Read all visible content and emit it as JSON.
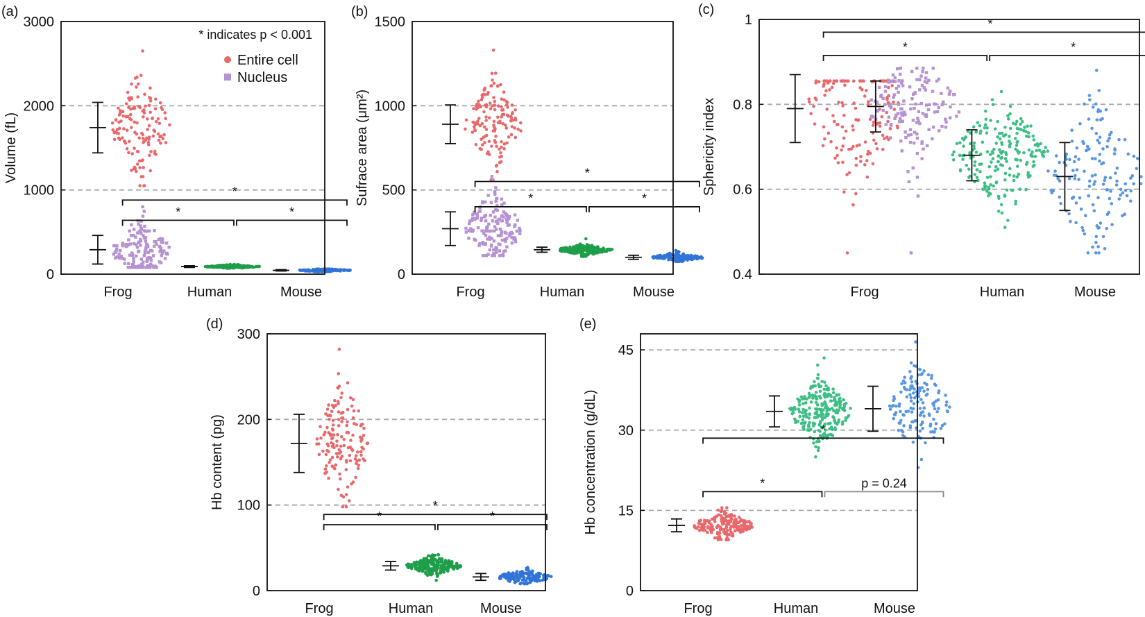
{
  "chart_data": [
    {
      "id": "a",
      "panel_label": "(a)",
      "type": "scatter",
      "ylabel": "Volume (fL)",
      "ylim": [
        0,
        3000
      ],
      "yticks": [
        0,
        1000,
        2000,
        3000
      ],
      "gridlines": [
        1000,
        2000
      ],
      "categories": [
        "Frog",
        "Human",
        "Mouse"
      ],
      "annotation": "* indicates p < 0.001",
      "legend": {
        "position": "top-right",
        "entries": [
          {
            "label": "Entire cell",
            "marker": "circle",
            "color": "#e8686b"
          },
          {
            "label": "Nucleus",
            "marker": "square",
            "color": "#b592d1"
          }
        ]
      },
      "series": [
        {
          "name": "Frog entire cell",
          "category": "Frog",
          "offset": 0.25,
          "mean": 1740,
          "sd": 300,
          "n": 140,
          "min": 1050,
          "max": 2650,
          "shape": "circle",
          "color": "#e8686b",
          "spread": 0.32
        },
        {
          "name": "Frog nucleus",
          "category": "Frog",
          "offset": 0.25,
          "mean": 290,
          "sd": 170,
          "n": 160,
          "min": 80,
          "max": 800,
          "shape": "square",
          "color": "#b592d1",
          "spread": 0.32
        },
        {
          "name": "Human",
          "category": "Human",
          "offset": 0.25,
          "mean": 90,
          "sd": 10,
          "n": 200,
          "min": 70,
          "max": 115,
          "shape": "circle",
          "color": "#1f9e4a",
          "spread": 0.3
        },
        {
          "name": "Mouse",
          "category": "Mouse",
          "offset": 0.25,
          "mean": 45,
          "sd": 8,
          "n": 140,
          "min": 30,
          "max": 60,
          "shape": "circle",
          "color": "#2f74d6",
          "spread": 0.3
        }
      ],
      "brackets": [
        {
          "from": 0,
          "to": 2,
          "y": 880,
          "label": "*"
        },
        {
          "from": 0,
          "to": 1,
          "y": 640,
          "label": "*"
        },
        {
          "from": 1,
          "to": 2,
          "y": 640,
          "label": "*"
        }
      ]
    },
    {
      "id": "b",
      "panel_label": "(b)",
      "type": "scatter",
      "ylabel": "Sufrace area (μm²)",
      "ylim": [
        0,
        1500
      ],
      "yticks": [
        0,
        500,
        1000,
        1500
      ],
      "gridlines": [
        500,
        1000
      ],
      "categories": [
        "Frog",
        "Human",
        "Mouse"
      ],
      "series": [
        {
          "name": "Frog entire cell",
          "category": "Frog",
          "offset": 0.25,
          "mean": 890,
          "sd": 115,
          "n": 140,
          "min": 560,
          "max": 1330,
          "shape": "circle",
          "color": "#e8686b",
          "spread": 0.32
        },
        {
          "name": "Frog nucleus",
          "category": "Frog",
          "offset": 0.25,
          "mean": 270,
          "sd": 100,
          "n": 160,
          "min": 110,
          "max": 580,
          "shape": "square",
          "color": "#b592d1",
          "spread": 0.32
        },
        {
          "name": "Human",
          "category": "Human",
          "offset": 0.25,
          "mean": 145,
          "sd": 15,
          "n": 200,
          "min": 105,
          "max": 210,
          "shape": "circle",
          "color": "#1f9e4a",
          "spread": 0.3
        },
        {
          "name": "Mouse",
          "category": "Mouse",
          "offset": 0.25,
          "mean": 100,
          "sd": 12,
          "n": 140,
          "min": 75,
          "max": 140,
          "shape": "circle",
          "color": "#2f74d6",
          "spread": 0.3
        }
      ],
      "brackets": [
        {
          "from": 0,
          "to": 2,
          "y": 550,
          "label": "*"
        },
        {
          "from": 0,
          "to": 1,
          "y": 400,
          "label": "*"
        },
        {
          "from": 1,
          "to": 2,
          "y": 400,
          "label": "*"
        }
      ]
    },
    {
      "id": "c",
      "panel_label": "(c)",
      "type": "scatter",
      "ylabel": "Sphericity index",
      "ylim": [
        0.4,
        1.0
      ],
      "yticks": [
        0.4,
        0.6,
        0.8,
        1.0
      ],
      "yticklabels": [
        "0.4",
        "0.6",
        "0.8",
        "1"
      ],
      "gridlines": [
        0.6,
        0.8
      ],
      "categories": [
        "Frog",
        "Human",
        "Mouse"
      ],
      "series": [
        {
          "name": "Frog entire cell",
          "category": "Frog",
          "offset": -0.08,
          "mean": 0.79,
          "sd": 0.08,
          "n": 150,
          "min": 0.45,
          "max": 0.855,
          "shape": "circle",
          "color": "#e8686b",
          "spread": 0.38
        },
        {
          "name": "Frog nucleus",
          "category": "Frog",
          "offset": 0.36,
          "mean": 0.795,
          "sd": 0.06,
          "n": 150,
          "min": 0.45,
          "max": 0.885,
          "shape": "square",
          "color": "#b592d1",
          "spread": 0.34
        },
        {
          "name": "Human",
          "category": "Human",
          "offset": 0.0,
          "mean": 0.68,
          "sd": 0.06,
          "n": 220,
          "min": 0.51,
          "max": 0.83,
          "shape": "circle",
          "color": "#3dbf84",
          "spread": 0.36
        },
        {
          "name": "Mouse",
          "category": "Mouse",
          "offset": 0.0,
          "mean": 0.63,
          "sd": 0.08,
          "n": 150,
          "min": 0.45,
          "max": 0.88,
          "shape": "circle",
          "color": "#5b96e0",
          "spread": 0.36
        }
      ],
      "brackets": [
        {
          "from": 0,
          "to": 2,
          "y": 0.97,
          "label": "*"
        },
        {
          "from": 0,
          "to": 1,
          "y": 0.915,
          "label": "*"
        },
        {
          "from": 1,
          "to": 2,
          "y": 0.915,
          "label": "*"
        }
      ]
    },
    {
      "id": "d",
      "panel_label": "(d)",
      "type": "scatter",
      "ylabel": "Hb content (pg)",
      "ylim": [
        0,
        300
      ],
      "yticks": [
        0,
        100,
        200,
        300
      ],
      "gridlines": [
        100,
        200
      ],
      "categories": [
        "Frog",
        "Human",
        "Mouse"
      ],
      "series": [
        {
          "name": "Frog",
          "category": "Frog",
          "offset": 0.25,
          "mean": 172,
          "sd": 34,
          "n": 150,
          "min": 98,
          "max": 282,
          "shape": "circle",
          "color": "#e8686b",
          "spread": 0.3
        },
        {
          "name": "Human",
          "category": "Human",
          "offset": 0.25,
          "mean": 29,
          "sd": 5,
          "n": 220,
          "min": 12,
          "max": 42,
          "shape": "circle",
          "color": "#1f9e4a",
          "spread": 0.3
        },
        {
          "name": "Mouse",
          "category": "Mouse",
          "offset": 0.25,
          "mean": 16,
          "sd": 4,
          "n": 140,
          "min": 8,
          "max": 27,
          "shape": "circle",
          "color": "#2f74d6",
          "spread": 0.3
        }
      ],
      "brackets": [
        {
          "from": 0,
          "to": 2,
          "y": 89,
          "label": "*"
        },
        {
          "from": 0,
          "to": 1,
          "y": 77,
          "label": "*"
        },
        {
          "from": 1,
          "to": 2,
          "y": 77,
          "label": "*"
        }
      ]
    },
    {
      "id": "e",
      "panel_label": "(e)",
      "type": "scatter",
      "ylabel": "Hb concentration (g/dL)",
      "ylim": [
        0,
        48
      ],
      "yticks": [
        0,
        15,
        30,
        45
      ],
      "gridlines": [
        15,
        30,
        45
      ],
      "categories": [
        "Frog",
        "Human",
        "Mouse"
      ],
      "series": [
        {
          "name": "Frog",
          "category": "Frog",
          "offset": 0.25,
          "mean": 12.2,
          "sd": 1.2,
          "n": 180,
          "min": 9.5,
          "max": 15.5,
          "shape": "circle",
          "color": "#e8686b",
          "spread": 0.32
        },
        {
          "name": "Human",
          "category": "Human",
          "offset": 0.25,
          "mean": 33.5,
          "sd": 2.9,
          "n": 240,
          "min": 25,
          "max": 43.5,
          "shape": "circle",
          "color": "#3dbf84",
          "spread": 0.32
        },
        {
          "name": "Mouse",
          "category": "Mouse",
          "offset": 0.25,
          "mean": 34.0,
          "sd": 4.2,
          "n": 150,
          "min": 23,
          "max": 46.5,
          "shape": "circle",
          "color": "#5b96e0",
          "spread": 0.32
        }
      ],
      "brackets": [
        {
          "from": 0,
          "to": 2,
          "y": 28.5,
          "label": "*"
        },
        {
          "from": 0,
          "to": 1,
          "y": 18.5,
          "label": "*"
        },
        {
          "from": 1,
          "to": 2,
          "y": 18.5,
          "label": "p = 0.24",
          "gray": true
        }
      ]
    }
  ]
}
